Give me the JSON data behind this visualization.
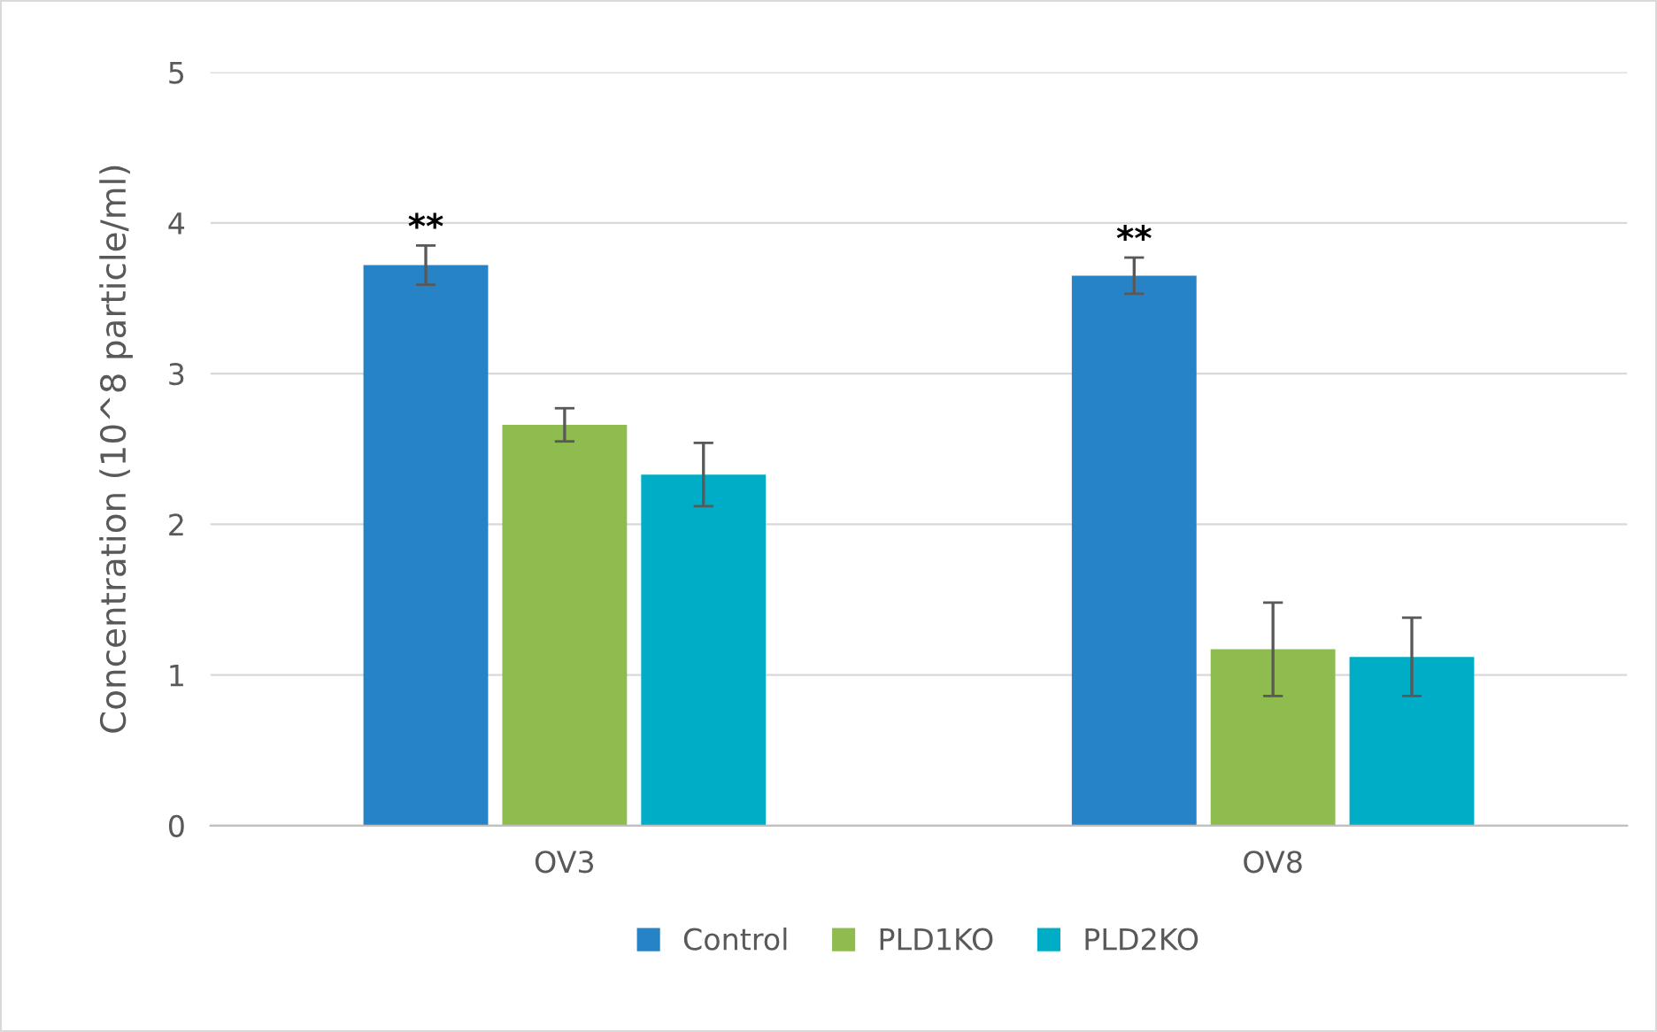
{
  "chart_data": {
    "type": "bar",
    "ylabel": "Concentration (10^8 particle/ml)",
    "categories": [
      "OV3",
      "OV8"
    ],
    "series": [
      {
        "name": "Control",
        "color": "#2683c6",
        "values": [
          3.72,
          3.65
        ],
        "errors": [
          0.13,
          0.12
        ]
      },
      {
        "name": "PLD1KO",
        "color": "#8fbc4f",
        "values": [
          2.66,
          1.17
        ],
        "errors": [
          0.11,
          0.31
        ]
      },
      {
        "name": "PLD2KO",
        "color": "#00adc6",
        "values": [
          2.33,
          1.12
        ],
        "errors": [
          0.21,
          0.26
        ]
      }
    ],
    "ylim": [
      0,
      5
    ],
    "yticks": [
      0,
      1,
      2,
      3,
      4,
      5
    ],
    "grid": "y",
    "legend": "bottom",
    "annotations": [
      "**",
      "**"
    ]
  }
}
